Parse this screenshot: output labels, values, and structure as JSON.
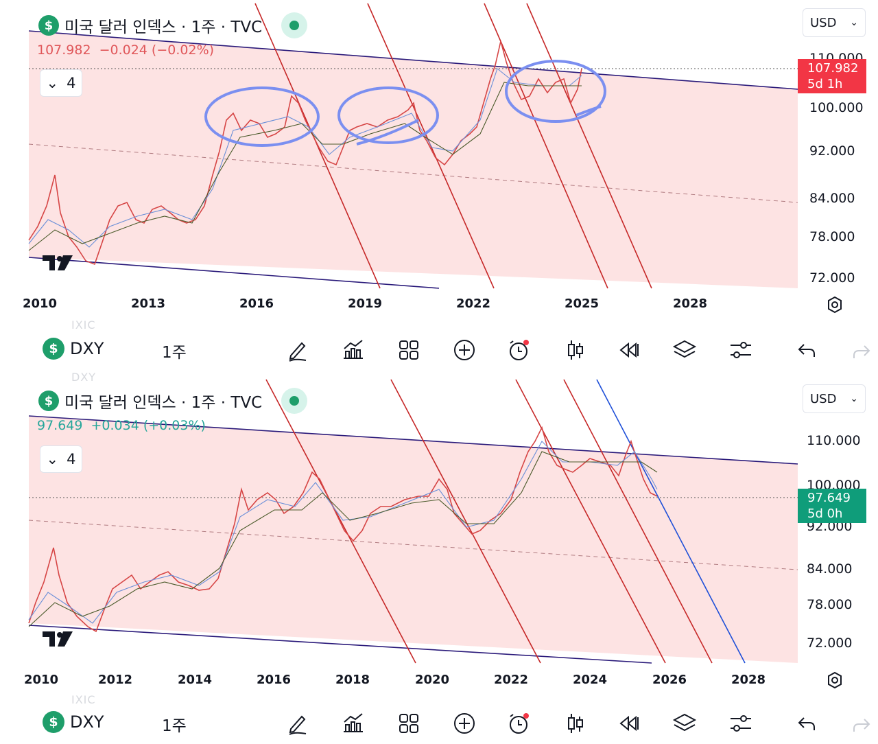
{
  "top": {
    "symbol_badge": "$",
    "title": "미국 달러 인덱스 · 1주 · TVC",
    "last_price": "107.982",
    "change": "−0.024 (−0.02%)",
    "price_color": "#e0575a",
    "collapse_count": "4",
    "currency": "USD",
    "y_ticks": [
      "110.000",
      "100.000",
      "92.000",
      "84.000",
      "78.000",
      "72.000"
    ],
    "x_ticks": [
      "2010",
      "2013",
      "2016",
      "2019",
      "2022",
      "2025",
      "2028"
    ],
    "price_tag": {
      "value": "107.982",
      "countdown": "5d 1h",
      "color": "#f23645"
    },
    "toolbar": {
      "symbol": "DXY",
      "interval": "1주",
      "ghost_above": "IXIC"
    }
  },
  "bottom": {
    "symbol_badge": "$",
    "title": "미국 달러 인덱스 · 1주 · TVC",
    "last_price": "97.649",
    "change": "+0.034 (+0.03%)",
    "price_color": "#26a69a",
    "collapse_count": "4",
    "currency": "USD",
    "y_ticks": [
      "110.000",
      "100.000",
      "92.000",
      "84.000",
      "78.000",
      "72.000"
    ],
    "x_ticks": [
      "2010",
      "2012",
      "2014",
      "2016",
      "2018",
      "2020",
      "2022",
      "2024",
      "2026",
      "2028"
    ],
    "price_tag": {
      "value": "97.649",
      "countdown": "5d 0h",
      "color": "#0f9d7a"
    },
    "toolbar": {
      "symbol": "DXY",
      "interval": "1주",
      "ghost_above": "IXIC",
      "ghost_top": "DXY"
    }
  },
  "toolbar_icons": [
    "draw-brush-icon",
    "indicators-icon",
    "layout-grid-icon",
    "add-plus-icon",
    "alert-clock-icon",
    "candles-icon",
    "replay-rewind-icon",
    "layers-icon",
    "settings-sliders-icon",
    "undo-icon",
    "redo-icon"
  ],
  "colors": {
    "channel_fill": "#fde3e3",
    "channel_line": "#2a1a7a",
    "red_trend": "#c62828",
    "blue_trend": "#1e4fd8",
    "highlight_circle": "#7b8ff0"
  }
}
